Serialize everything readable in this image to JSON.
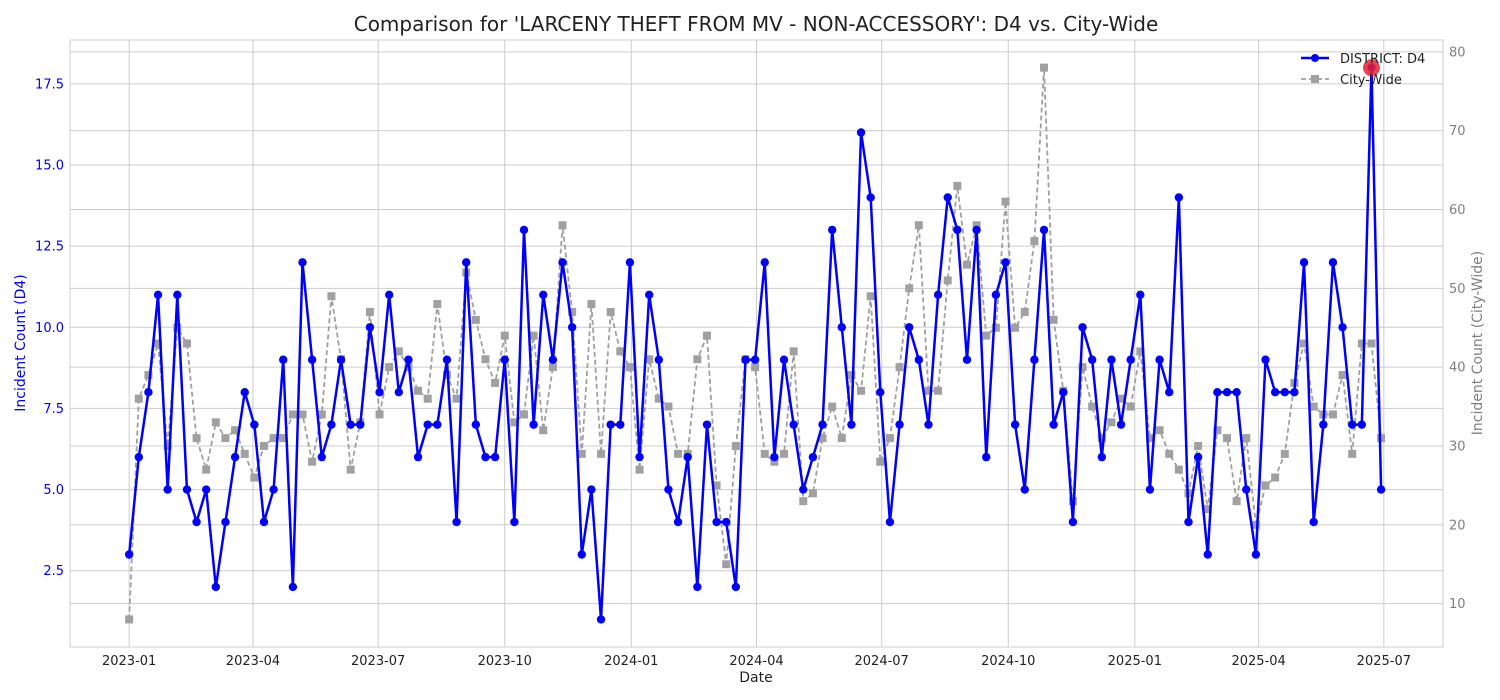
{
  "chart_data": {
    "type": "line",
    "title": "Comparison for 'LARCENY THEFT FROM MV - NON-ACCESSORY': D4 vs. City-Wide",
    "xlabel": "Date",
    "ylabel_left": "Incident Count (D4)",
    "ylabel_right": "Incident Count (City-Wide)",
    "x_ticks": [
      "2023-01",
      "2023-04",
      "2023-07",
      "2023-10",
      "2024-01",
      "2024-04",
      "2024-07",
      "2024-10",
      "2025-01",
      "2025-04",
      "2025-07"
    ],
    "y_left_ticks": [
      "2.5",
      "5.0",
      "7.5",
      "10.0",
      "12.5",
      "15.0",
      "17.5"
    ],
    "y_right_ticks": [
      "10",
      "20",
      "30",
      "40",
      "50",
      "60",
      "70",
      "80"
    ],
    "x_range": [
      "2022-11-19",
      "2025-08-13"
    ],
    "y_left_range": [
      0.15,
      18.85
    ],
    "y_right_range": [
      4.5,
      81.5
    ],
    "grid": true,
    "legend": "top-right",
    "x_dates": [
      "2023-01-01",
      "2023-01-08",
      "2023-01-15",
      "2023-01-22",
      "2023-01-29",
      "2023-02-05",
      "2023-02-12",
      "2023-02-19",
      "2023-02-26",
      "2023-03-05",
      "2023-03-12",
      "2023-03-19",
      "2023-03-26",
      "2023-04-02",
      "2023-04-09",
      "2023-04-16",
      "2023-04-23",
      "2023-04-30",
      "2023-05-07",
      "2023-05-14",
      "2023-05-21",
      "2023-05-28",
      "2023-06-04",
      "2023-06-11",
      "2023-06-18",
      "2023-06-25",
      "2023-07-02",
      "2023-07-09",
      "2023-07-16",
      "2023-07-23",
      "2023-07-30",
      "2023-08-06",
      "2023-08-13",
      "2023-08-20",
      "2023-08-27",
      "2023-09-03",
      "2023-09-10",
      "2023-09-17",
      "2023-09-24",
      "2023-10-01",
      "2023-10-08",
      "2023-10-15",
      "2023-10-22",
      "2023-10-29",
      "2023-11-05",
      "2023-11-12",
      "2023-11-19",
      "2023-11-26",
      "2023-12-03",
      "2023-12-10",
      "2023-12-17",
      "2023-12-24",
      "2023-12-31",
      "2024-01-07",
      "2024-01-14",
      "2024-01-21",
      "2024-01-28",
      "2024-02-04",
      "2024-02-11",
      "2024-02-18",
      "2024-02-25",
      "2024-03-03",
      "2024-03-10",
      "2024-03-17",
      "2024-03-24",
      "2024-03-31",
      "2024-04-07",
      "2024-04-14",
      "2024-04-21",
      "2024-04-28",
      "2024-05-05",
      "2024-05-12",
      "2024-05-19",
      "2024-05-26",
      "2024-06-02",
      "2024-06-09",
      "2024-06-16",
      "2024-06-23",
      "2024-06-30",
      "2024-07-07",
      "2024-07-14",
      "2024-07-21",
      "2024-07-28",
      "2024-08-04",
      "2024-08-11",
      "2024-08-18",
      "2024-08-25",
      "2024-09-01",
      "2024-09-08",
      "2024-09-15",
      "2024-09-22",
      "2024-09-29",
      "2024-10-06",
      "2024-10-13",
      "2024-10-20",
      "2024-10-27",
      "2024-11-03",
      "2024-11-10",
      "2024-11-17",
      "2024-11-24",
      "2024-12-01",
      "2024-12-08",
      "2024-12-15",
      "2024-12-22",
      "2024-12-29",
      "2025-01-05",
      "2025-01-12",
      "2025-01-19",
      "2025-01-26",
      "2025-02-02",
      "2025-02-09",
      "2025-02-16",
      "2025-02-23",
      "2025-03-02",
      "2025-03-09",
      "2025-03-16",
      "2025-03-23",
      "2025-03-30",
      "2025-04-06",
      "2025-04-13",
      "2025-04-20",
      "2025-04-27",
      "2025-05-04",
      "2025-05-11",
      "2025-05-18",
      "2025-05-25",
      "2025-06-01",
      "2025-06-08",
      "2025-06-15",
      "2025-06-22",
      "2025-06-29"
    ],
    "series": [
      {
        "name": "DISTRICT: D4",
        "axis": "left",
        "color": "#0000ff",
        "style": "solid",
        "marker": "circle",
        "values": [
          3,
          6,
          8,
          11,
          5,
          11,
          5,
          4,
          5,
          2,
          4,
          6,
          8,
          7,
          4,
          5,
          9,
          2,
          12,
          9,
          6,
          7,
          9,
          7,
          7,
          10,
          8,
          11,
          8,
          9,
          6,
          7,
          7,
          9,
          4,
          12,
          7,
          6,
          6,
          9,
          4,
          13,
          7,
          11,
          9,
          12,
          10,
          3,
          5,
          1,
          7,
          7,
          12,
          6,
          11,
          9,
          5,
          4,
          6,
          2,
          7,
          4,
          4,
          2,
          9,
          9,
          12,
          6,
          9,
          7,
          5,
          6,
          7,
          13,
          10,
          7,
          16,
          14,
          8,
          4,
          7,
          10,
          9,
          7,
          11,
          14,
          13,
          9,
          13,
          6,
          11,
          12,
          7,
          5,
          9,
          13,
          7,
          8,
          4,
          10,
          9,
          6,
          9,
          7,
          9,
          11,
          5,
          9,
          8,
          14,
          4,
          6,
          3,
          8,
          8,
          8,
          5,
          3,
          9,
          8,
          8,
          8,
          12,
          4,
          7,
          12,
          10,
          7,
          7,
          18,
          5
        ]
      },
      {
        "name": "City-Wide",
        "axis": "right",
        "color": "#a0a0a0",
        "style": "dashed",
        "marker": "square",
        "values": [
          8,
          36,
          39,
          43,
          30,
          45,
          43,
          31,
          27,
          33,
          31,
          32,
          29,
          26,
          30,
          31,
          31,
          34,
          34,
          28,
          34,
          49,
          41,
          27,
          33,
          47,
          34,
          40,
          42,
          40,
          37,
          36,
          48,
          39,
          36,
          52,
          46,
          41,
          38,
          44,
          33,
          34,
          44,
          32,
          40,
          58,
          47,
          29,
          48,
          29,
          47,
          42,
          40,
          27,
          41,
          36,
          35,
          29,
          29,
          41,
          44,
          25,
          15,
          30,
          41,
          40,
          29,
          28,
          29,
          42,
          23,
          24,
          31,
          35,
          31,
          39,
          37,
          49,
          28,
          31,
          40,
          50,
          58,
          37,
          37,
          51,
          63,
          53,
          58,
          44,
          45,
          61,
          45,
          47,
          56,
          78,
          46,
          37,
          23,
          40,
          35,
          31,
          33,
          36,
          35,
          42,
          31,
          32,
          29,
          27,
          24,
          30,
          22,
          32,
          31,
          23,
          31,
          20,
          25,
          26,
          29,
          38,
          43,
          35,
          34,
          34,
          39,
          29,
          43,
          43,
          31
        ]
      }
    ],
    "highlight": {
      "x": "2025-06-22",
      "series": "DISTRICT: D4",
      "value": 18,
      "color": "#e8212e"
    }
  }
}
